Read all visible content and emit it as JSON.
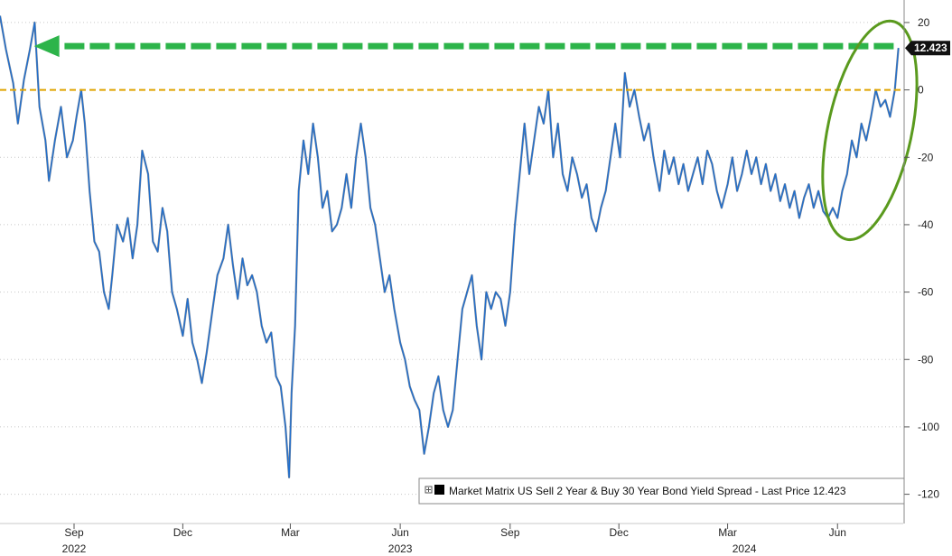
{
  "chart_data": {
    "type": "line",
    "title": "",
    "xlabel": "",
    "ylabel": "",
    "ylim": [
      -126,
      24
    ],
    "y_ticks": [
      20,
      0,
      -20,
      -40,
      -60,
      -80,
      -100,
      -120
    ],
    "x_ticks": [
      {
        "label": "Sep",
        "date": "2022-09-01"
      },
      {
        "label": "Dec",
        "date": "2022-12-01"
      },
      {
        "label": "Mar",
        "date": "2023-03-01"
      },
      {
        "label": "Jun",
        "date": "2023-06-01"
      },
      {
        "label": "Sep",
        "date": "2023-09-01"
      },
      {
        "label": "Dec",
        "date": "2023-12-01"
      },
      {
        "label": "Mar",
        "date": "2024-03-01"
      },
      {
        "label": "Jun",
        "date": "2024-06-01"
      }
    ],
    "year_labels": [
      {
        "label": "2022",
        "date": "2022-09-01"
      },
      {
        "label": "2023",
        "date": "2023-06-01"
      },
      {
        "label": "2024",
        "date": "2024-03-15"
      }
    ],
    "x_range": [
      "2022-07-01",
      "2024-07-26"
    ],
    "grid": "horizontal dotted",
    "legend_position": "bottom-right",
    "series": [
      {
        "name": "Market Matrix US Sell 2 Year & Buy 30 Year Bond Yield Spread - Last Price 12.423",
        "color": "#1f6fcf",
        "points": [
          [
            "2022-07-01",
            22
          ],
          [
            "2022-07-06",
            12
          ],
          [
            "2022-07-12",
            2
          ],
          [
            "2022-07-16",
            -10
          ],
          [
            "2022-07-21",
            3
          ],
          [
            "2022-07-26",
            12
          ],
          [
            "2022-07-30",
            20
          ],
          [
            "2022-08-03",
            -5
          ],
          [
            "2022-08-08",
            -15
          ],
          [
            "2022-08-11",
            -27
          ],
          [
            "2022-08-16",
            -15
          ],
          [
            "2022-08-21",
            -5
          ],
          [
            "2022-08-26",
            -20
          ],
          [
            "2022-08-31",
            -15
          ],
          [
            "2022-09-03",
            -8
          ],
          [
            "2022-09-07",
            0
          ],
          [
            "2022-09-10",
            -10
          ],
          [
            "2022-09-14",
            -30
          ],
          [
            "2022-09-18",
            -45
          ],
          [
            "2022-09-22",
            -48
          ],
          [
            "2022-09-26",
            -60
          ],
          [
            "2022-09-30",
            -65
          ],
          [
            "2022-10-03",
            -55
          ],
          [
            "2022-10-07",
            -40
          ],
          [
            "2022-10-12",
            -45
          ],
          [
            "2022-10-16",
            -38
          ],
          [
            "2022-10-20",
            -50
          ],
          [
            "2022-10-24",
            -40
          ],
          [
            "2022-10-28",
            -18
          ],
          [
            "2022-11-02",
            -25
          ],
          [
            "2022-11-06",
            -45
          ],
          [
            "2022-11-10",
            -48
          ],
          [
            "2022-11-14",
            -35
          ],
          [
            "2022-11-18",
            -42
          ],
          [
            "2022-11-22",
            -60
          ],
          [
            "2022-11-26",
            -65
          ],
          [
            "2022-12-01",
            -73
          ],
          [
            "2022-12-05",
            -62
          ],
          [
            "2022-12-09",
            -75
          ],
          [
            "2022-12-13",
            -80
          ],
          [
            "2022-12-17",
            -87
          ],
          [
            "2022-12-21",
            -78
          ],
          [
            "2022-12-26",
            -65
          ],
          [
            "2022-12-30",
            -55
          ],
          [
            "2023-01-04",
            -50
          ],
          [
            "2023-01-08",
            -40
          ],
          [
            "2023-01-12",
            -52
          ],
          [
            "2023-01-16",
            -62
          ],
          [
            "2023-01-20",
            -50
          ],
          [
            "2023-01-24",
            -58
          ],
          [
            "2023-01-28",
            -55
          ],
          [
            "2023-02-01",
            -60
          ],
          [
            "2023-02-05",
            -70
          ],
          [
            "2023-02-09",
            -75
          ],
          [
            "2023-02-13",
            -72
          ],
          [
            "2023-02-17",
            -85
          ],
          [
            "2023-02-21",
            -88
          ],
          [
            "2023-02-25",
            -100
          ],
          [
            "2023-02-28",
            -115
          ],
          [
            "2023-03-02",
            -90
          ],
          [
            "2023-03-05",
            -70
          ],
          [
            "2023-03-08",
            -30
          ],
          [
            "2023-03-12",
            -15
          ],
          [
            "2023-03-16",
            -25
          ],
          [
            "2023-03-20",
            -10
          ],
          [
            "2023-03-24",
            -20
          ],
          [
            "2023-03-28",
            -35
          ],
          [
            "2023-04-01",
            -30
          ],
          [
            "2023-04-05",
            -42
          ],
          [
            "2023-04-09",
            -40
          ],
          [
            "2023-04-13",
            -35
          ],
          [
            "2023-04-17",
            -25
          ],
          [
            "2023-04-21",
            -35
          ],
          [
            "2023-04-25",
            -20
          ],
          [
            "2023-04-29",
            -10
          ],
          [
            "2023-05-03",
            -20
          ],
          [
            "2023-05-07",
            -35
          ],
          [
            "2023-05-11",
            -40
          ],
          [
            "2023-05-15",
            -50
          ],
          [
            "2023-05-19",
            -60
          ],
          [
            "2023-05-23",
            -55
          ],
          [
            "2023-05-27",
            -65
          ],
          [
            "2023-06-01",
            -75
          ],
          [
            "2023-06-05",
            -80
          ],
          [
            "2023-06-09",
            -88
          ],
          [
            "2023-06-13",
            -92
          ],
          [
            "2023-06-17",
            -95
          ],
          [
            "2023-06-21",
            -108
          ],
          [
            "2023-06-25",
            -100
          ],
          [
            "2023-06-29",
            -90
          ],
          [
            "2023-07-03",
            -85
          ],
          [
            "2023-07-07",
            -95
          ],
          [
            "2023-07-11",
            -100
          ],
          [
            "2023-07-15",
            -95
          ],
          [
            "2023-07-19",
            -80
          ],
          [
            "2023-07-23",
            -65
          ],
          [
            "2023-07-27",
            -60
          ],
          [
            "2023-07-31",
            -55
          ],
          [
            "2023-08-04",
            -70
          ],
          [
            "2023-08-08",
            -80
          ],
          [
            "2023-08-12",
            -60
          ],
          [
            "2023-08-16",
            -65
          ],
          [
            "2023-08-20",
            -60
          ],
          [
            "2023-08-24",
            -62
          ],
          [
            "2023-08-28",
            -70
          ],
          [
            "2023-09-01",
            -60
          ],
          [
            "2023-09-05",
            -40
          ],
          [
            "2023-09-09",
            -25
          ],
          [
            "2023-09-13",
            -10
          ],
          [
            "2023-09-17",
            -25
          ],
          [
            "2023-09-21",
            -15
          ],
          [
            "2023-09-25",
            -5
          ],
          [
            "2023-09-29",
            -10
          ],
          [
            "2023-10-03",
            0
          ],
          [
            "2023-10-07",
            -20
          ],
          [
            "2023-10-11",
            -10
          ],
          [
            "2023-10-15",
            -25
          ],
          [
            "2023-10-19",
            -30
          ],
          [
            "2023-10-23",
            -20
          ],
          [
            "2023-10-27",
            -25
          ],
          [
            "2023-10-31",
            -32
          ],
          [
            "2023-11-04",
            -28
          ],
          [
            "2023-11-08",
            -38
          ],
          [
            "2023-11-12",
            -42
          ],
          [
            "2023-11-16",
            -35
          ],
          [
            "2023-11-20",
            -30
          ],
          [
            "2023-11-24",
            -20
          ],
          [
            "2023-11-28",
            -10
          ],
          [
            "2023-12-02",
            -20
          ],
          [
            "2023-12-06",
            5
          ],
          [
            "2023-12-10",
            -5
          ],
          [
            "2023-12-14",
            0
          ],
          [
            "2023-12-18",
            -8
          ],
          [
            "2023-12-22",
            -15
          ],
          [
            "2023-12-26",
            -10
          ],
          [
            "2023-12-30",
            -20
          ],
          [
            "2024-01-04",
            -30
          ],
          [
            "2024-01-08",
            -18
          ],
          [
            "2024-01-12",
            -25
          ],
          [
            "2024-01-16",
            -20
          ],
          [
            "2024-01-20",
            -28
          ],
          [
            "2024-01-24",
            -22
          ],
          [
            "2024-01-28",
            -30
          ],
          [
            "2024-02-01",
            -25
          ],
          [
            "2024-02-05",
            -20
          ],
          [
            "2024-02-09",
            -28
          ],
          [
            "2024-02-13",
            -18
          ],
          [
            "2024-02-17",
            -22
          ],
          [
            "2024-02-21",
            -30
          ],
          [
            "2024-02-25",
            -35
          ],
          [
            "2024-03-01",
            -28
          ],
          [
            "2024-03-05",
            -20
          ],
          [
            "2024-03-09",
            -30
          ],
          [
            "2024-03-13",
            -25
          ],
          [
            "2024-03-17",
            -18
          ],
          [
            "2024-03-21",
            -25
          ],
          [
            "2024-03-25",
            -20
          ],
          [
            "2024-03-29",
            -28
          ],
          [
            "2024-04-02",
            -22
          ],
          [
            "2024-04-06",
            -30
          ],
          [
            "2024-04-10",
            -25
          ],
          [
            "2024-04-14",
            -33
          ],
          [
            "2024-04-18",
            -28
          ],
          [
            "2024-04-22",
            -35
          ],
          [
            "2024-04-26",
            -30
          ],
          [
            "2024-04-30",
            -38
          ],
          [
            "2024-05-04",
            -32
          ],
          [
            "2024-05-08",
            -28
          ],
          [
            "2024-05-12",
            -35
          ],
          [
            "2024-05-16",
            -30
          ],
          [
            "2024-05-20",
            -36
          ],
          [
            "2024-05-24",
            -38
          ],
          [
            "2024-05-28",
            -35
          ],
          [
            "2024-06-01",
            -38
          ],
          [
            "2024-06-05",
            -30
          ],
          [
            "2024-06-09",
            -25
          ],
          [
            "2024-06-13",
            -15
          ],
          [
            "2024-06-17",
            -20
          ],
          [
            "2024-06-21",
            -10
          ],
          [
            "2024-06-25",
            -15
          ],
          [
            "2024-06-29",
            -8
          ],
          [
            "2024-07-03",
            0
          ],
          [
            "2024-07-07",
            -5
          ],
          [
            "2024-07-11",
            -3
          ],
          [
            "2024-07-15",
            -8
          ],
          [
            "2024-07-19",
            0
          ],
          [
            "2024-07-22",
            12.423
          ]
        ]
      }
    ],
    "last_value": "12.423",
    "reference_line": {
      "value": 0,
      "color": "#e0a400",
      "style": "dashed"
    },
    "annotation_arrow": {
      "color": "#2db44a",
      "from_date": "2024-07-18",
      "to_date": "2022-08-03",
      "value": 13
    },
    "annotation_ellipse": {
      "color": "#5a9a1e",
      "from_date": "2024-06-02",
      "to_date": "2024-07-24",
      "y_low": -44,
      "y_high": 20
    }
  }
}
